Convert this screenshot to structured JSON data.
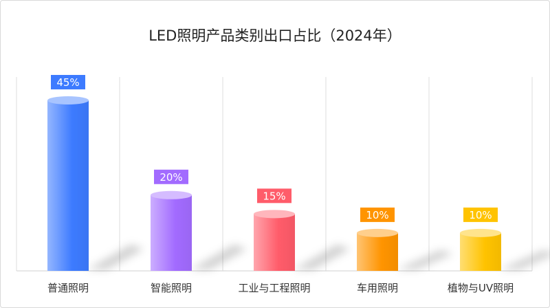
{
  "chart_data": {
    "type": "bar",
    "title": "LED照明产品类别出口占比（2024年）",
    "categories": [
      "普通照明",
      "智能照明",
      "工业与工程照明",
      "车用照明",
      "植物与UV照明"
    ],
    "values": [
      45,
      20,
      15,
      10,
      10
    ],
    "value_labels": [
      "45%",
      "20%",
      "15%",
      "10%",
      "10%"
    ],
    "colors": [
      "#3d7bff",
      "#a26bff",
      "#ff5c6a",
      "#ff9400",
      "#ffc300"
    ],
    "ylim": [
      0,
      50
    ],
    "xlabel": "",
    "ylabel": "",
    "grid": "vertical separators",
    "legend": "none"
  }
}
